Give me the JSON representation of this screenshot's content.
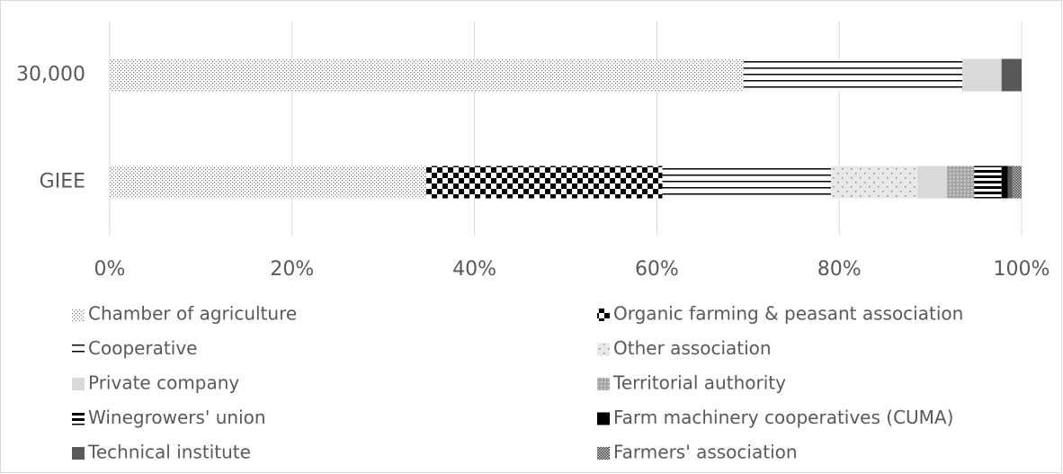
{
  "chart_data": {
    "type": "stacked-barh",
    "categories": [
      "30,000",
      "GIEE"
    ],
    "series": [
      {
        "name": "Chamber of agriculture",
        "color": "#808080",
        "pattern": "dots",
        "values": [
          69.5,
          34.7
        ]
      },
      {
        "name": "Organic farming & peasant association",
        "color": "#000000",
        "pattern": "checker",
        "values": [
          0,
          25.9
        ]
      },
      {
        "name": "Cooperative",
        "color": "#000000",
        "pattern": "hlines",
        "values": [
          24.0,
          18.5
        ]
      },
      {
        "name": "Other association",
        "color": "#a6a6a6",
        "pattern": "sparse",
        "values": [
          0,
          9.5
        ]
      },
      {
        "name": "Private company",
        "color": "#d9d9d9",
        "pattern": "solid",
        "values": [
          4.3,
          3.2
        ]
      },
      {
        "name": "Territorial authority",
        "color": "#a6a6a6",
        "pattern": "speckle",
        "values": [
          0,
          3.0
        ]
      },
      {
        "name": "Winegrowers' union",
        "color": "#000000",
        "pattern": "boldlines",
        "values": [
          0,
          3.0
        ]
      },
      {
        "name": "Farm machinery cooperatives (CUMA)",
        "color": "#000000",
        "pattern": "solid",
        "values": [
          0,
          0.7
        ]
      },
      {
        "name": "Technical institute",
        "color": "#595959",
        "pattern": "solid",
        "values": [
          2.2,
          0.5
        ]
      },
      {
        "name": "Farmers' association",
        "color": "#404040",
        "pattern": "cross",
        "values": [
          0,
          1.0
        ]
      }
    ],
    "xlim": [
      0,
      100
    ],
    "xticks": [
      {
        "value": 0,
        "label": "0%"
      },
      {
        "value": 20,
        "label": "20%"
      },
      {
        "value": 40,
        "label": "40%"
      },
      {
        "value": 60,
        "label": "60%"
      },
      {
        "value": 80,
        "label": "80%"
      },
      {
        "value": 100,
        "label": "100%"
      }
    ],
    "grid": true,
    "legend": "bottom"
  }
}
